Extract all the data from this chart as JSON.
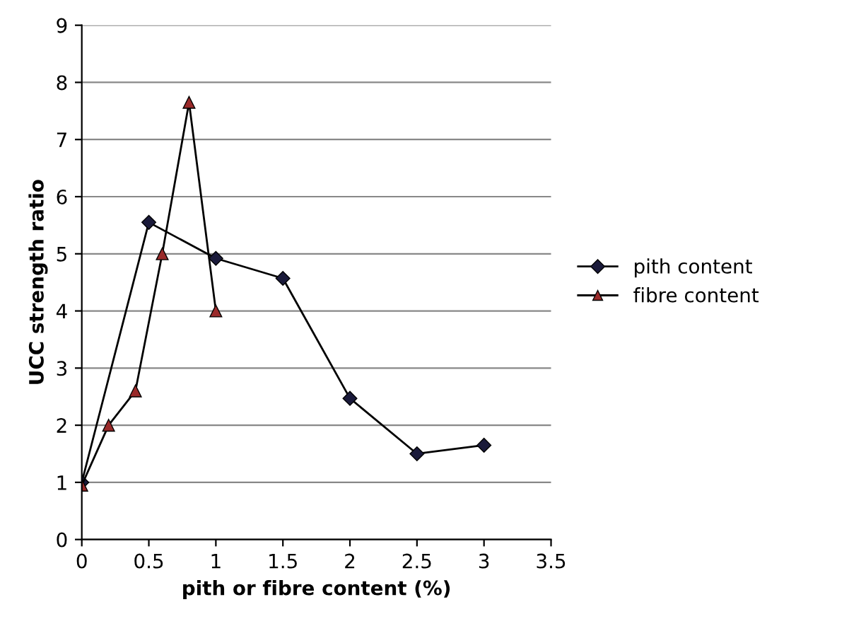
{
  "chart_data": {
    "type": "line",
    "xlabel": "pith or fibre content (%)",
    "ylabel": "UCC strength ratio",
    "xlim": [
      0,
      3.5
    ],
    "xticks": [
      0,
      0.5,
      1,
      1.5,
      2,
      2.5,
      3,
      3.5
    ],
    "ylim": [
      0,
      9
    ],
    "yticks": [
      0,
      1,
      2,
      3,
      4,
      5,
      6,
      7,
      8,
      9
    ],
    "grid": "y",
    "legend": "right",
    "series": [
      {
        "name": "pith content",
        "color": "#1a1a3a",
        "marker": "diamond",
        "x": [
          0,
          0.5,
          1,
          1.5,
          2,
          2.5,
          3
        ],
        "values": [
          1,
          5.55,
          4.92,
          4.57,
          2.47,
          1.5,
          1.65
        ]
      },
      {
        "name": "fibre content",
        "color": "#9a2a2a",
        "marker": "triangle",
        "x": [
          0,
          0.2,
          0.4,
          0.6,
          0.8,
          1
        ],
        "values": [
          0.95,
          2.0,
          2.6,
          5.0,
          7.65,
          4.0
        ]
      }
    ]
  }
}
